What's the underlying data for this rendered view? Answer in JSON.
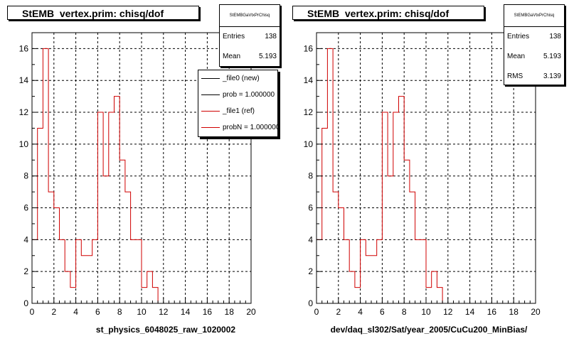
{
  "chart_data": [
    {
      "type": "bar",
      "histogram": true,
      "title": "StEMB  vertex.prim: chisq/dof",
      "xlabel": "st_physics_6048025_raw_1020002",
      "ylabel": "",
      "xlim": [
        0,
        20
      ],
      "ylim": [
        0,
        17
      ],
      "xticks": [
        "0",
        "2",
        "4",
        "6",
        "8",
        "10",
        "12",
        "14",
        "16",
        "18",
        "20"
      ],
      "yticks": [
        "0",
        "2",
        "4",
        "6",
        "8",
        "10",
        "12",
        "14",
        "16"
      ],
      "grid": true,
      "bin_width": 0.5,
      "values": [
        4,
        11,
        16,
        7,
        6,
        4,
        2,
        1,
        4,
        3,
        3,
        4,
        12,
        8,
        12,
        13,
        9,
        7,
        4,
        4,
        1,
        2,
        1,
        0,
        0,
        0,
        0,
        0,
        0,
        0,
        0,
        0,
        0,
        0,
        0,
        0,
        0,
        0,
        0,
        0
      ],
      "color": "#d00000",
      "stats": {
        "header": "StEMBGaVtxPrChisq",
        "entries_label": "Entries",
        "entries": "138",
        "mean_label": "Mean",
        "mean": "5.193"
      },
      "legend": {
        "placement": "top-right",
        "entries": [
          {
            "label": "_file0 (new)",
            "color": "#000000"
          },
          {
            "label": "prob = 1.000000",
            "color": "#000000"
          },
          {
            "label": "_file1 (ref)",
            "color": "#d00000"
          },
          {
            "label": "probN = 1.000000",
            "color": "#d00000"
          }
        ]
      }
    },
    {
      "type": "bar",
      "histogram": true,
      "title": "StEMB  vertex.prim: chisq/dof",
      "xlabel": "dev/daq_sl302/Sat/year_2005/CuCu200_MinBias/",
      "ylabel": "",
      "xlim": [
        0,
        20
      ],
      "ylim": [
        0,
        17
      ],
      "xticks": [
        "0",
        "2",
        "4",
        "6",
        "8",
        "10",
        "12",
        "14",
        "16",
        "18",
        "20"
      ],
      "yticks": [
        "0",
        "2",
        "4",
        "6",
        "8",
        "10",
        "12",
        "14",
        "16"
      ],
      "grid": true,
      "bin_width": 0.5,
      "values": [
        4,
        11,
        16,
        7,
        6,
        4,
        2,
        1,
        4,
        3,
        3,
        4,
        12,
        8,
        12,
        13,
        9,
        7,
        4,
        4,
        1,
        2,
        1,
        0,
        0,
        0,
        0,
        0,
        0,
        0,
        0,
        0,
        0,
        0,
        0,
        0,
        0,
        0,
        0,
        0
      ],
      "color": "#d00000",
      "stats": {
        "header": "StEMBGaVtxPrChisq",
        "entries_label": "Entries",
        "entries": "138",
        "mean_label": "Mean",
        "mean": "5.193",
        "rms_label": "RMS",
        "rms": "3.139"
      }
    }
  ]
}
